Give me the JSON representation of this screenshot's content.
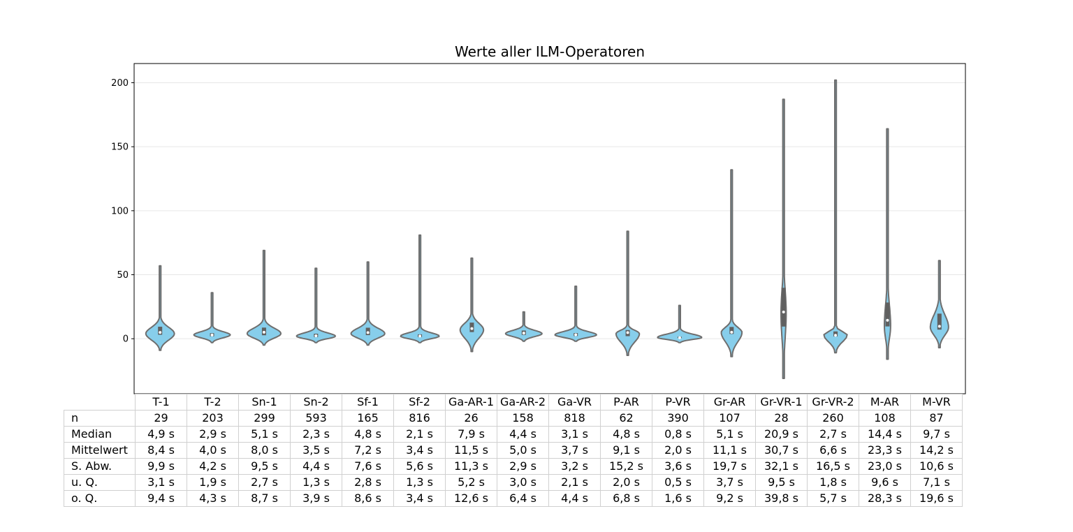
{
  "chart_data": {
    "type": "violin",
    "title": "Werte aller ILM-Operatoren",
    "xlabel": "",
    "ylabel": "",
    "ylim": [
      -43,
      215
    ],
    "yticks": [
      0,
      50,
      100,
      150,
      200
    ],
    "grid": "horizontal",
    "violin_color": "#87CEEB",
    "edge_color": "#6e6e6e",
    "categories": [
      "T-1",
      "T-2",
      "Sn-1",
      "Sn-2",
      "Sf-1",
      "Sf-2",
      "Ga-AR-1",
      "Ga-AR-2",
      "Ga-VR",
      "P-AR",
      "P-VR",
      "Gr-AR",
      "Gr-VR-1",
      "Gr-VR-2",
      "M-AR",
      "M-VR"
    ],
    "violins": [
      {
        "min": -9,
        "max": 57,
        "median": 4.9,
        "q1": 3.1,
        "q3": 9.4,
        "mode": 4,
        "width": 0.55
      },
      {
        "min": -3,
        "max": 36,
        "median": 2.9,
        "q1": 1.9,
        "q3": 4.3,
        "mode": 3,
        "width": 0.7
      },
      {
        "min": -5,
        "max": 69,
        "median": 5.1,
        "q1": 2.7,
        "q3": 8.7,
        "mode": 4,
        "width": 0.65
      },
      {
        "min": -3,
        "max": 55,
        "median": 2.3,
        "q1": 1.3,
        "q3": 3.9,
        "mode": 2,
        "width": 0.75
      },
      {
        "min": -5,
        "max": 60,
        "median": 4.8,
        "q1": 2.8,
        "q3": 8.6,
        "mode": 4,
        "width": 0.65
      },
      {
        "min": -3,
        "max": 81,
        "median": 2.1,
        "q1": 1.3,
        "q3": 3.4,
        "mode": 2,
        "width": 0.75
      },
      {
        "min": -10,
        "max": 63,
        "median": 7.9,
        "q1": 5.2,
        "q3": 12.6,
        "mode": 7,
        "width": 0.45
      },
      {
        "min": -2,
        "max": 21,
        "median": 4.4,
        "q1": 3.0,
        "q3": 6.4,
        "mode": 4,
        "width": 0.7
      },
      {
        "min": -2,
        "max": 41,
        "median": 3.1,
        "q1": 2.1,
        "q3": 4.4,
        "mode": 3,
        "width": 0.8
      },
      {
        "min": -13,
        "max": 84,
        "median": 4.8,
        "q1": 2.0,
        "q3": 6.8,
        "mode": 4,
        "width": 0.45
      },
      {
        "min": -3,
        "max": 26,
        "median": 0.8,
        "q1": 0.5,
        "q3": 1.6,
        "mode": 1,
        "width": 0.85
      },
      {
        "min": -14,
        "max": 132,
        "median": 5.1,
        "q1": 3.7,
        "q3": 9.2,
        "mode": 5,
        "width": 0.4
      },
      {
        "min": -31,
        "max": 187,
        "median": 20.9,
        "q1": 9.5,
        "q3": 39.8,
        "mode": 20,
        "width": 0.1
      },
      {
        "min": -11,
        "max": 202,
        "median": 2.7,
        "q1": 1.8,
        "q3": 5.7,
        "mode": 3,
        "width": 0.45
      },
      {
        "min": -16,
        "max": 164,
        "median": 14.4,
        "q1": 9.6,
        "q3": 28.3,
        "mode": 10,
        "width": 0.12
      },
      {
        "min": -7,
        "max": 61,
        "median": 9.7,
        "q1": 7.1,
        "q3": 19.6,
        "mode": 9,
        "width": 0.35
      }
    ]
  },
  "table": {
    "headers": [
      "T-1",
      "T-2",
      "Sn-1",
      "Sn-2",
      "Sf-1",
      "Sf-2",
      "Ga-AR-1",
      "Ga-AR-2",
      "Ga-VR",
      "P-AR",
      "P-VR",
      "Gr-AR",
      "Gr-VR-1",
      "Gr-VR-2",
      "M-AR",
      "M-VR"
    ],
    "rows": [
      {
        "label": "n",
        "cells": [
          "29",
          "203",
          "299",
          "593",
          "165",
          "816",
          "26",
          "158",
          "818",
          "62",
          "390",
          "107",
          "28",
          "260",
          "108",
          "87"
        ]
      },
      {
        "label": "Median",
        "cells": [
          "4,9 s",
          "2,9 s",
          "5,1 s",
          "2,3 s",
          "4,8 s",
          "2,1 s",
          "7,9 s",
          "4,4 s",
          "3,1 s",
          "4,8 s",
          "0,8 s",
          "5,1 s",
          "20,9 s",
          "2,7 s",
          "14,4 s",
          "9,7 s"
        ]
      },
      {
        "label": "Mittelwert",
        "cells": [
          "8,4 s",
          "4,0 s",
          "8,0 s",
          "3,5 s",
          "7,2 s",
          "3,4 s",
          "11,5 s",
          "5,0 s",
          "3,7 s",
          "9,1 s",
          "2,0 s",
          "11,1 s",
          "30,7 s",
          "6,6 s",
          "23,3 s",
          "14,2 s"
        ]
      },
      {
        "label": "S. Abw.",
        "cells": [
          "9,9 s",
          "4,2 s",
          "9,5 s",
          "4,4 s",
          "7,6 s",
          "5,6 s",
          "11,3 s",
          "2,9 s",
          "3,2 s",
          "15,2 s",
          "3,6 s",
          "19,7 s",
          "32,1 s",
          "16,5 s",
          "23,0 s",
          "10,6 s"
        ]
      },
      {
        "label": "u. Q.",
        "cells": [
          "3,1 s",
          "1,9 s",
          "2,7 s",
          "1,3 s",
          "2,8 s",
          "1,3 s",
          "5,2 s",
          "3,0 s",
          "2,1 s",
          "2,0 s",
          "0,5 s",
          "3,7 s",
          "9,5 s",
          "1,8 s",
          "9,6 s",
          "7,1 s"
        ]
      },
      {
        "label": "o. Q.",
        "cells": [
          "9,4 s",
          "4,3 s",
          "8,7 s",
          "3,9 s",
          "8,6 s",
          "3,4 s",
          "12,6 s",
          "6,4 s",
          "4,4 s",
          "6,8 s",
          "1,6 s",
          "9,2 s",
          "39,8 s",
          "5,7 s",
          "28,3 s",
          "19,6 s"
        ]
      }
    ]
  }
}
